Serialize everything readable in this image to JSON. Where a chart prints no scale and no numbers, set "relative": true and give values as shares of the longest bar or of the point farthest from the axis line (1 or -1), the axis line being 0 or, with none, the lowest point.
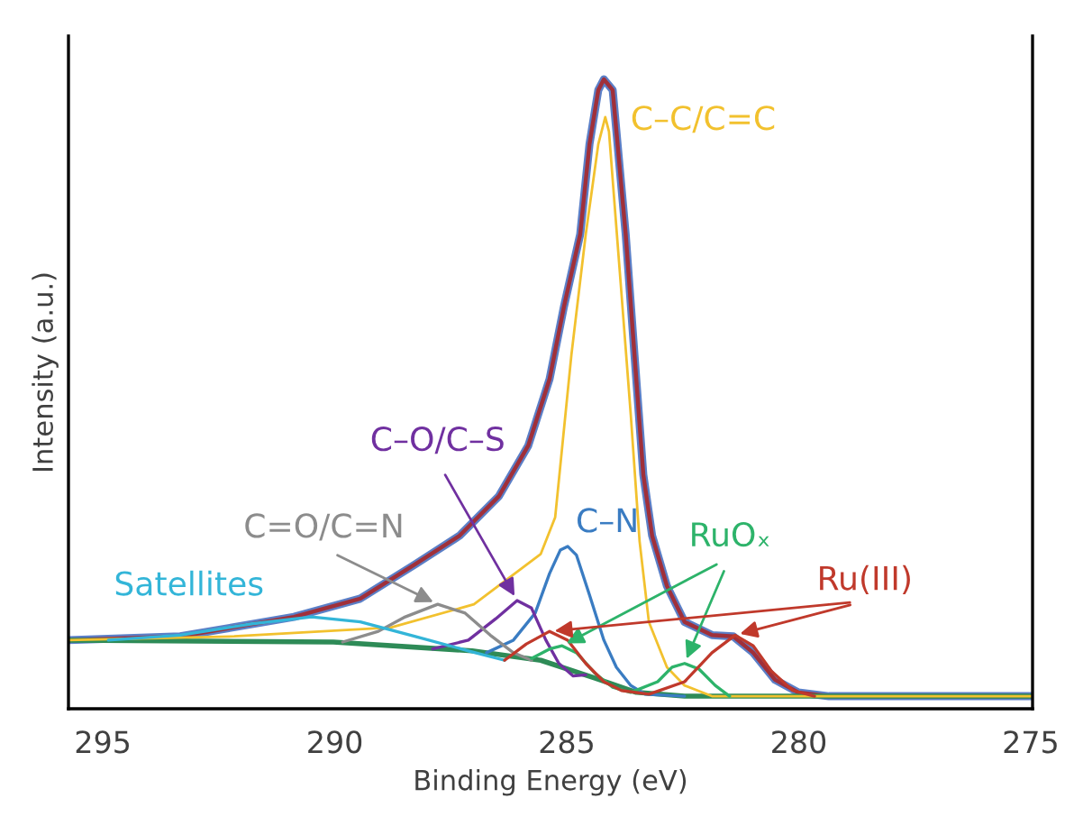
{
  "chart_data": {
    "type": "line",
    "relative": true,
    "xlabel": "Binding Energy (eV)",
    "ylabel": "Intensity (a.u.)",
    "xlim": [
      295.74,
      274.96
    ],
    "xticks": [
      295,
      290,
      285,
      280,
      275
    ],
    "grid": false,
    "series": [
      {
        "color": "#5b7fc7",
        "x": [
          295.74,
          293.33,
          290.88,
          289.45,
          288.28,
          287.31,
          286.46,
          285.83,
          285.37,
          285.06,
          284.71,
          284.51,
          284.32,
          284.2,
          284.01,
          283.73,
          283.54,
          283.35,
          283.16,
          282.84,
          282.46,
          281.87,
          281.41,
          280.98,
          280.51,
          280.01,
          279.35,
          274.96
        ],
        "values": [
          0.109,
          0.115,
          0.146,
          0.175,
          0.229,
          0.275,
          0.338,
          0.418,
          0.524,
          0.639,
          0.754,
          0.897,
          0.983,
          1.0,
          0.983,
          0.754,
          0.562,
          0.372,
          0.275,
          0.195,
          0.138,
          0.117,
          0.115,
          0.089,
          0.046,
          0.026,
          0.02,
          0.02
        ]
      },
      {
        "color": "#a0303a",
        "x": [
          295.74,
          293.33,
          290.88,
          289.45,
          288.28,
          287.31,
          286.46,
          285.83,
          285.37,
          285.06,
          284.71,
          284.51,
          284.32,
          284.2,
          284.01,
          283.73,
          283.54,
          283.35,
          283.16,
          282.84,
          282.46,
          281.87,
          281.41,
          280.98,
          280.51,
          280.01,
          279.35,
          274.96
        ],
        "values": [
          0.109,
          0.115,
          0.146,
          0.175,
          0.229,
          0.275,
          0.338,
          0.418,
          0.524,
          0.639,
          0.754,
          0.897,
          0.983,
          1.0,
          0.983,
          0.754,
          0.562,
          0.372,
          0.275,
          0.195,
          0.138,
          0.117,
          0.115,
          0.089,
          0.046,
          0.026,
          0.02,
          0.02
        ]
      },
      {
        "color": "#2e8b57",
        "x": [
          295.74,
          290.03,
          287.04,
          285.56,
          284.4,
          283.5,
          282.46,
          274.96
        ],
        "values": [
          0.109,
          0.106,
          0.092,
          0.077,
          0.049,
          0.026,
          0.02,
          0.02
        ]
      },
      {
        "name": "C–C/C=C",
        "color": "#f2c12e",
        "x": [
          295.74,
          292.17,
          288.79,
          287.0,
          285.56,
          285.25,
          284.9,
          284.59,
          284.32,
          284.17,
          284.09,
          283.82,
          283.62,
          283.43,
          283.23,
          282.84,
          282.46,
          281.87,
          274.96
        ],
        "values": [
          0.109,
          0.115,
          0.129,
          0.166,
          0.246,
          0.304,
          0.562,
          0.754,
          0.897,
          0.94,
          0.917,
          0.659,
          0.467,
          0.266,
          0.138,
          0.066,
          0.037,
          0.02,
          0.02
        ]
      },
      {
        "name": "C–N",
        "color": "#3a7cc2",
        "x": [
          286.73,
          286.15,
          285.68,
          285.37,
          285.14,
          284.98,
          284.79,
          284.51,
          284.2,
          283.93,
          283.62,
          283.31,
          282.46
        ],
        "values": [
          0.089,
          0.109,
          0.152,
          0.215,
          0.252,
          0.258,
          0.244,
          0.181,
          0.109,
          0.066,
          0.037,
          0.023,
          0.02
        ]
      },
      {
        "name": "C–O/C–S",
        "color": "#7030a0",
        "x": [
          287.89,
          287.12,
          286.53,
          286.07,
          285.76,
          285.45,
          285.17,
          284.86,
          284.59
        ],
        "values": [
          0.095,
          0.109,
          0.143,
          0.172,
          0.16,
          0.109,
          0.072,
          0.052,
          0.054
        ]
      },
      {
        "name": "C=O/C=N",
        "color": "#8c8c8c",
        "x": [
          289.83,
          289.06,
          288.48,
          287.78,
          287.19,
          286.65,
          286.15,
          285.76
        ],
        "values": [
          0.106,
          0.123,
          0.146,
          0.166,
          0.152,
          0.117,
          0.089,
          0.077
        ]
      },
      {
        "name": "Satellites",
        "color": "#33b5d8",
        "x": [
          294.88,
          293.33,
          291.78,
          290.5,
          289.45,
          288.28,
          287.12,
          286.34
        ],
        "values": [
          0.109,
          0.117,
          0.135,
          0.146,
          0.138,
          0.115,
          0.092,
          0.077
        ]
      },
      {
        "name": "RuOₓ",
        "color": "#2db36a",
        "x": [
          285.76,
          285.37,
          285.1,
          284.79,
          284.4,
          284.01,
          283.62,
          283.04,
          282.73,
          282.46,
          282.15,
          281.8,
          281.49
        ],
        "values": [
          0.08,
          0.095,
          0.1,
          0.089,
          0.057,
          0.034,
          0.026,
          0.043,
          0.066,
          0.072,
          0.063,
          0.037,
          0.02
        ]
      },
      {
        "name": "Ru(III)",
        "color": "#c0392b",
        "x": [
          286.34,
          285.87,
          285.37,
          284.98,
          284.59,
          284.2,
          283.82,
          283.23,
          282.46,
          281.87,
          281.37,
          280.98,
          280.59,
          280.13,
          279.66
        ],
        "values": [
          0.077,
          0.103,
          0.123,
          0.109,
          0.072,
          0.043,
          0.029,
          0.023,
          0.043,
          0.089,
          0.117,
          0.1,
          0.06,
          0.029,
          0.02
        ]
      }
    ]
  }
}
